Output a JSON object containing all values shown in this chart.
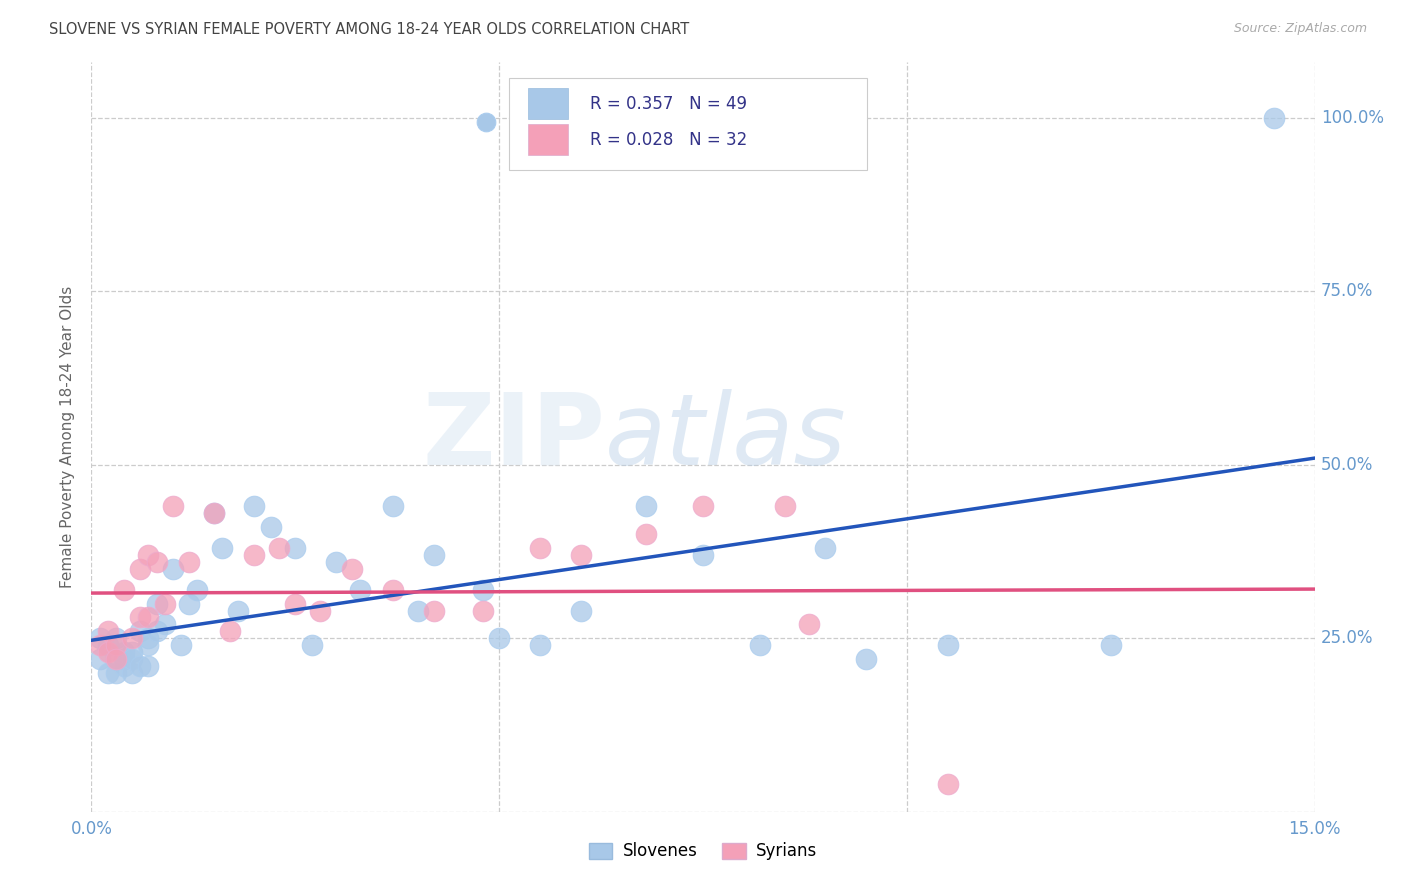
{
  "title": "SLOVENE VS SYRIAN FEMALE POVERTY AMONG 18-24 YEAR OLDS CORRELATION CHART",
  "source": "Source: ZipAtlas.com",
  "ylabel": "Female Poverty Among 18-24 Year Olds",
  "xlim": [
    0.0,
    0.15
  ],
  "ylim": [
    0.0,
    1.08
  ],
  "slovene_color": "#a8c8e8",
  "syrian_color": "#f4a0b8",
  "slovene_line_color": "#2255bb",
  "syrian_line_color": "#e05080",
  "slovene_R": 0.357,
  "slovene_N": 49,
  "syrian_R": 0.028,
  "syrian_N": 32,
  "legend_label_slovene": "Slovenes",
  "legend_label_syrian": "Syrians",
  "watermark_zip": "ZIP",
  "watermark_atlas": "atlas",
  "title_color": "#444444",
  "axis_color": "#6699cc",
  "background_color": "#ffffff",
  "grid_color": "#cccccc",
  "slovene_x": [
    0.001,
    0.001,
    0.002,
    0.002,
    0.003,
    0.003,
    0.003,
    0.004,
    0.004,
    0.004,
    0.005,
    0.005,
    0.005,
    0.006,
    0.006,
    0.007,
    0.007,
    0.007,
    0.008,
    0.008,
    0.009,
    0.01,
    0.011,
    0.012,
    0.013,
    0.015,
    0.016,
    0.018,
    0.02,
    0.022,
    0.025,
    0.027,
    0.03,
    0.033,
    0.037,
    0.04,
    0.042,
    0.048,
    0.05,
    0.055,
    0.06,
    0.068,
    0.075,
    0.082,
    0.09,
    0.095,
    0.105,
    0.125,
    0.145
  ],
  "slovene_y": [
    0.22,
    0.25,
    0.2,
    0.24,
    0.22,
    0.25,
    0.2,
    0.23,
    0.22,
    0.21,
    0.23,
    0.2,
    0.22,
    0.26,
    0.21,
    0.25,
    0.24,
    0.21,
    0.3,
    0.26,
    0.27,
    0.35,
    0.24,
    0.3,
    0.32,
    0.43,
    0.38,
    0.29,
    0.44,
    0.41,
    0.38,
    0.24,
    0.36,
    0.32,
    0.44,
    0.29,
    0.37,
    0.32,
    0.25,
    0.24,
    0.29,
    0.44,
    0.37,
    0.24,
    0.38,
    0.22,
    0.24,
    0.24,
    1.0
  ],
  "syrian_x": [
    0.001,
    0.002,
    0.002,
    0.003,
    0.003,
    0.004,
    0.005,
    0.006,
    0.006,
    0.007,
    0.007,
    0.008,
    0.009,
    0.01,
    0.012,
    0.015,
    0.017,
    0.02,
    0.023,
    0.025,
    0.028,
    0.032,
    0.037,
    0.042,
    0.048,
    0.055,
    0.06,
    0.068,
    0.075,
    0.085,
    0.088,
    0.105
  ],
  "syrian_y": [
    0.24,
    0.23,
    0.26,
    0.24,
    0.22,
    0.32,
    0.25,
    0.35,
    0.28,
    0.37,
    0.28,
    0.36,
    0.3,
    0.44,
    0.36,
    0.43,
    0.26,
    0.37,
    0.38,
    0.3,
    0.29,
    0.35,
    0.32,
    0.29,
    0.29,
    0.38,
    0.37,
    0.4,
    0.44,
    0.44,
    0.27,
    0.04
  ]
}
